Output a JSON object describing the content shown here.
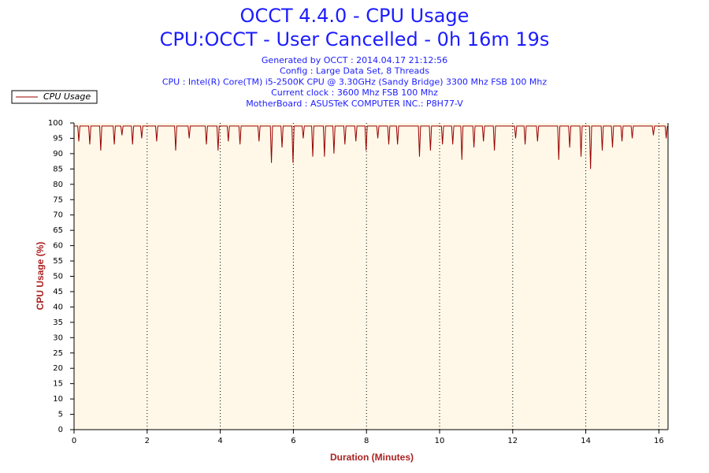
{
  "chart_data": {
    "type": "line",
    "title": "OCCT 4.4.0 - CPU Usage",
    "subtitle": "CPU:OCCT - User Cancelled - 0h 16m 19s",
    "info": [
      "Generated by OCCT : 2014.04.17 21:12:56",
      "Config : Large Data Set, 8 Threads",
      "CPU : Intel(R) Core(TM) i5-2500K CPU @ 3.30GHz (Sandy Bridge) 3300 Mhz FSB 100 Mhz",
      "Current clock : 3600 Mhz FSB 100 Mhz",
      "MotherBoard : ASUSTeK COMPUTER INC.: P8H77-V"
    ],
    "xlabel": "Duration (Minutes)",
    "ylabel": "CPU Usage (%)",
    "legend": "top-left",
    "grid": true,
    "xlim": [
      0,
      16.25
    ],
    "xticks": [
      0,
      2,
      4,
      6,
      8,
      10,
      12,
      14,
      16
    ],
    "ylim": [
      0,
      100
    ],
    "yticks": [
      0,
      5,
      10,
      15,
      20,
      25,
      30,
      35,
      40,
      45,
      50,
      55,
      60,
      65,
      70,
      75,
      80,
      85,
      90,
      95,
      100
    ],
    "x": [
      0,
      0.1,
      0.13,
      0.16,
      0.4,
      0.43,
      0.46,
      0.7,
      0.73,
      0.76,
      1.07,
      1.1,
      1.13,
      1.28,
      1.31,
      1.34,
      1.57,
      1.6,
      1.63,
      1.82,
      1.85,
      1.88,
      2.23,
      2.26,
      2.29,
      2.75,
      2.78,
      2.81,
      3.12,
      3.15,
      3.18,
      3.59,
      3.62,
      3.65,
      3.91,
      3.94,
      3.97,
      4.19,
      4.22,
      4.25,
      4.51,
      4.54,
      4.57,
      5.03,
      5.06,
      5.09,
      5.37,
      5.4,
      5.43,
      5.66,
      5.69,
      5.72,
      5.96,
      5.99,
      6.02,
      6.24,
      6.27,
      6.3,
      6.5,
      6.53,
      6.56,
      6.82,
      6.85,
      6.88,
      7.08,
      7.11,
      7.14,
      7.38,
      7.41,
      7.44,
      7.68,
      7.71,
      7.74,
      7.96,
      7.99,
      8.02,
      8.28,
      8.31,
      8.34,
      8.58,
      8.61,
      8.64,
      8.82,
      8.85,
      8.88,
      9.42,
      9.45,
      9.48,
      9.72,
      9.75,
      9.78,
      10.05,
      10.08,
      10.11,
      10.33,
      10.36,
      10.39,
      10.58,
      10.61,
      10.64,
      10.91,
      10.94,
      10.97,
      11.17,
      11.2,
      11.23,
      11.47,
      11.5,
      11.53,
      12.05,
      12.08,
      12.11,
      12.31,
      12.34,
      12.37,
      12.65,
      12.68,
      12.71,
      13.23,
      13.26,
      13.29,
      13.53,
      13.56,
      13.59,
      13.84,
      13.87,
      13.9,
      14.1,
      14.13,
      14.16,
      14.42,
      14.45,
      14.48,
      14.7,
      14.73,
      14.76,
      14.96,
      14.99,
      15.02,
      15.24,
      15.27,
      15.3,
      15.82,
      15.85,
      15.88,
      16.17,
      16.2,
      16.23
    ],
    "series": [
      {
        "name": "CPU Usage",
        "color": "#990000",
        "values": [
          99,
          99,
          94,
          99,
          99,
          93,
          99,
          99,
          91,
          99,
          99,
          93,
          99,
          99,
          96,
          99,
          99,
          93,
          99,
          99,
          95,
          99,
          99,
          94,
          99,
          99,
          91,
          99,
          99,
          95,
          99,
          99,
          93,
          99,
          99,
          91,
          99,
          99,
          94,
          99,
          99,
          93,
          99,
          99,
          94,
          99,
          99,
          87,
          99,
          99,
          92,
          99,
          99,
          87,
          99,
          99,
          95,
          99,
          99,
          89,
          99,
          99,
          89,
          99,
          99,
          90,
          99,
          99,
          93,
          99,
          99,
          94,
          99,
          99,
          91,
          99,
          99,
          95,
          99,
          99,
          93,
          99,
          99,
          93,
          99,
          99,
          89,
          99,
          99,
          91,
          99,
          99,
          93,
          99,
          99,
          93,
          99,
          99,
          88,
          99,
          99,
          92,
          99,
          99,
          94,
          99,
          99,
          91,
          99,
          99,
          95,
          99,
          99,
          93,
          99,
          99,
          94,
          99,
          99,
          88,
          99,
          99,
          92,
          99,
          99,
          89,
          99,
          99,
          85,
          99,
          99,
          91,
          99,
          99,
          92,
          99,
          99,
          94,
          99,
          99,
          95,
          99,
          99,
          96,
          99,
          99,
          95,
          99
        ]
      }
    ]
  }
}
